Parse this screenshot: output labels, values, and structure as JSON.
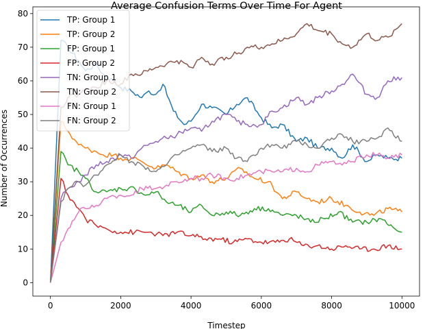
{
  "chart_data": {
    "type": "line",
    "title": "Average Confusion Terms Over Time For Agent",
    "xlabel": "Timestep",
    "ylabel": "Number of Occurrences",
    "xlim": [
      -500,
      10500
    ],
    "ylim": [
      -4,
      82
    ],
    "xticks": [
      0,
      2000,
      4000,
      6000,
      8000,
      10000
    ],
    "yticks": [
      0,
      10,
      20,
      30,
      40,
      50,
      60,
      70,
      80
    ],
    "grid": false,
    "legend_position": "upper-left",
    "series": [
      {
        "name": "TP: Group 1",
        "color": "#1f77b4",
        "x": [
          0,
          300,
          500,
          800,
          1000,
          1300,
          1500,
          1800,
          2000,
          2300,
          2600,
          2800,
          3000,
          3200,
          3500,
          3800,
          4000,
          4300,
          4600,
          5000,
          5300,
          5600,
          6000,
          6300,
          6600,
          7000,
          7300,
          7600,
          8000,
          8300,
          8600,
          9000,
          9300,
          9600,
          10000
        ],
        "y": [
          0,
          72,
          70,
          66,
          63,
          65,
          62,
          60,
          58,
          57,
          55,
          57,
          56,
          59,
          51,
          47,
          48,
          53,
          52,
          50,
          53,
          55,
          49,
          46,
          47,
          42,
          43,
          40,
          40,
          37,
          41,
          36,
          38,
          37,
          37
        ]
      },
      {
        "name": "TP: Group 2",
        "color": "#ff7f0e",
        "x": [
          0,
          300,
          500,
          800,
          1000,
          1300,
          1500,
          1800,
          2000,
          2300,
          2600,
          3000,
          3300,
          3600,
          4000,
          4300,
          4600,
          5000,
          5400,
          5800,
          6200,
          6600,
          7000,
          7300,
          7600,
          8000,
          8400,
          8800,
          9200,
          9600,
          10000
        ],
        "y": [
          0,
          48,
          45,
          41,
          40,
          39,
          38,
          38,
          37,
          37,
          36,
          34,
          35,
          33,
          31,
          32,
          30,
          31,
          34,
          31,
          30,
          25,
          27,
          25,
          24,
          25,
          23,
          21,
          20,
          22,
          21
        ]
      },
      {
        "name": "FP: Group 1",
        "color": "#2ca02c",
        "x": [
          0,
          300,
          500,
          800,
          1000,
          1300,
          1600,
          2000,
          2400,
          2700,
          3000,
          3300,
          3600,
          4000,
          4300,
          4600,
          5000,
          5400,
          5800,
          6200,
          6600,
          7000,
          7400,
          7800,
          8200,
          8600,
          9000,
          9400,
          9800,
          10000
        ],
        "y": [
          0,
          39,
          35,
          33,
          31,
          27,
          27,
          28,
          28,
          26,
          27,
          24,
          23,
          21,
          23,
          20,
          21,
          20,
          22,
          22,
          20,
          20,
          18,
          19,
          21,
          18,
          18,
          19,
          16,
          15
        ]
      },
      {
        "name": "FP: Group 2",
        "color": "#d62728",
        "x": [
          0,
          300,
          500,
          800,
          1000,
          1300,
          1600,
          2000,
          2400,
          2800,
          3200,
          3600,
          4000,
          4400,
          4800,
          5200,
          5600,
          6000,
          6400,
          6800,
          7200,
          7600,
          8000,
          8400,
          8800,
          9200,
          9600,
          10000
        ],
        "y": [
          0,
          31,
          26,
          22,
          19,
          17,
          16,
          15,
          15,
          15,
          14,
          15,
          14,
          13,
          13,
          12,
          13,
          12,
          12,
          13,
          11,
          11,
          10,
          11,
          10,
          10,
          11,
          10
        ]
      },
      {
        "name": "TN: Group 1",
        "color": "#9467bd",
        "x": [
          0,
          300,
          500,
          800,
          1000,
          1300,
          1600,
          2000,
          2300,
          2600,
          3000,
          3300,
          3600,
          4000,
          4300,
          4600,
          5000,
          5300,
          5600,
          6000,
          6300,
          6600,
          7000,
          7300,
          7600,
          8000,
          8300,
          8600,
          9000,
          9300,
          9600,
          10000
        ],
        "y": [
          0,
          25,
          28,
          30,
          32,
          35,
          36,
          38,
          37,
          40,
          42,
          43,
          44,
          46,
          45,
          48,
          50,
          48,
          47,
          47,
          51,
          52,
          55,
          53,
          55,
          57,
          59,
          62,
          56,
          55,
          60,
          61
        ]
      },
      {
        "name": "TN: Group 2",
        "color": "#8c564b",
        "x": [
          0,
          300,
          500,
          800,
          1000,
          1300,
          1600,
          2000,
          2300,
          2600,
          3000,
          3300,
          3600,
          4000,
          4300,
          4600,
          5000,
          5300,
          5600,
          6000,
          6300,
          6600,
          7000,
          7300,
          7600,
          8000,
          8300,
          8600,
          9000,
          9300,
          9600,
          10000
        ],
        "y": [
          0,
          52,
          55,
          56,
          57,
          58,
          60,
          59,
          62,
          62,
          64,
          65,
          66,
          64,
          67,
          65,
          67,
          68,
          70,
          70,
          71,
          72,
          74,
          77,
          75,
          74,
          71,
          70,
          74,
          72,
          73,
          77
        ]
      },
      {
        "name": "FN: Group 1",
        "color": "#e377c2",
        "x": [
          0,
          300,
          500,
          800,
          1000,
          1300,
          1600,
          2000,
          2300,
          2600,
          3000,
          3300,
          3600,
          4000,
          4300,
          4600,
          5000,
          5300,
          5600,
          6000,
          6300,
          6600,
          7000,
          7300,
          7600,
          8000,
          8300,
          8600,
          9000,
          9300,
          9600,
          10000
        ],
        "y": [
          0,
          12,
          16,
          21,
          22,
          23,
          25,
          26,
          26,
          28,
          28,
          29,
          30,
          31,
          31,
          32,
          31,
          31,
          32,
          33,
          33,
          33,
          34,
          33,
          35,
          36,
          35,
          36,
          38,
          38,
          37,
          38
        ]
      },
      {
        "name": "FN: Group 2",
        "color": "#7f7f7f",
        "x": [
          0,
          300,
          500,
          800,
          1000,
          1300,
          1600,
          2000,
          2300,
          2600,
          3000,
          3300,
          3600,
          4000,
          4300,
          4600,
          5000,
          5300,
          5600,
          6000,
          6300,
          6600,
          7000,
          7300,
          7600,
          8000,
          8300,
          8600,
          9000,
          9300,
          9600,
          10000
        ],
        "y": [
          0,
          24,
          28,
          30,
          29,
          32,
          35,
          38,
          36,
          35,
          33,
          35,
          38,
          40,
          41,
          39,
          40,
          37,
          36,
          40,
          41,
          40,
          42,
          41,
          40,
          43,
          44,
          42,
          42,
          43,
          46,
          42
        ]
      }
    ]
  }
}
